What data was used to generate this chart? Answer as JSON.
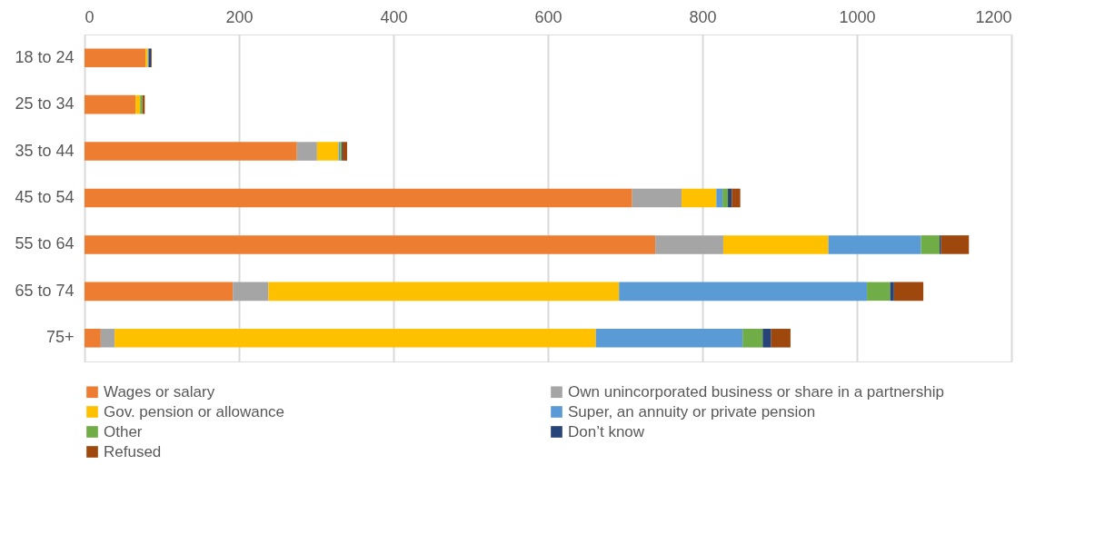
{
  "chart_data": {
    "type": "bar",
    "orientation": "horizontal",
    "stacked": true,
    "categories": [
      "18 to 24",
      "25 to 34",
      "35 to 44",
      "45 to 54",
      "55 to 64",
      "65 to 74",
      "75+"
    ],
    "series": [
      {
        "name": "Wages or salary",
        "color": "#ed7d31",
        "values": [
          79,
          66,
          275,
          709,
          739,
          192,
          21
        ]
      },
      {
        "name": "Own unincorporated business or share in a partnership",
        "color": "#a5a5a5",
        "values": [
          0,
          null,
          26,
          64,
          88,
          46,
          18
        ]
      },
      {
        "name": "Gov. pension or allowance",
        "color": "#ffc000",
        "values": [
          3,
          6,
          28,
          45,
          136,
          454,
          623
        ]
      },
      {
        "name": "Super, an annuity or private pension",
        "color": "#5b9bd5",
        "values": [
          1,
          0,
          2,
          8,
          120,
          321,
          190
        ]
      },
      {
        "name": "Other",
        "color": "#70ad47",
        "values": [
          0,
          3,
          2,
          7,
          24,
          30,
          26
        ]
      },
      {
        "name": "Don’t know",
        "color": "#264478",
        "values": [
          3,
          null,
          1,
          5,
          2,
          5,
          11
        ]
      },
      {
        "name": "Refused",
        "color": "#9e480e",
        "values": [
          1,
          3,
          6,
          11,
          36,
          38,
          25
        ]
      }
    ],
    "xlim": [
      0,
      1200
    ],
    "xticks": [
      0,
      200,
      400,
      600,
      800,
      1000,
      1200
    ],
    "grid": "x",
    "legend": "bottom"
  }
}
